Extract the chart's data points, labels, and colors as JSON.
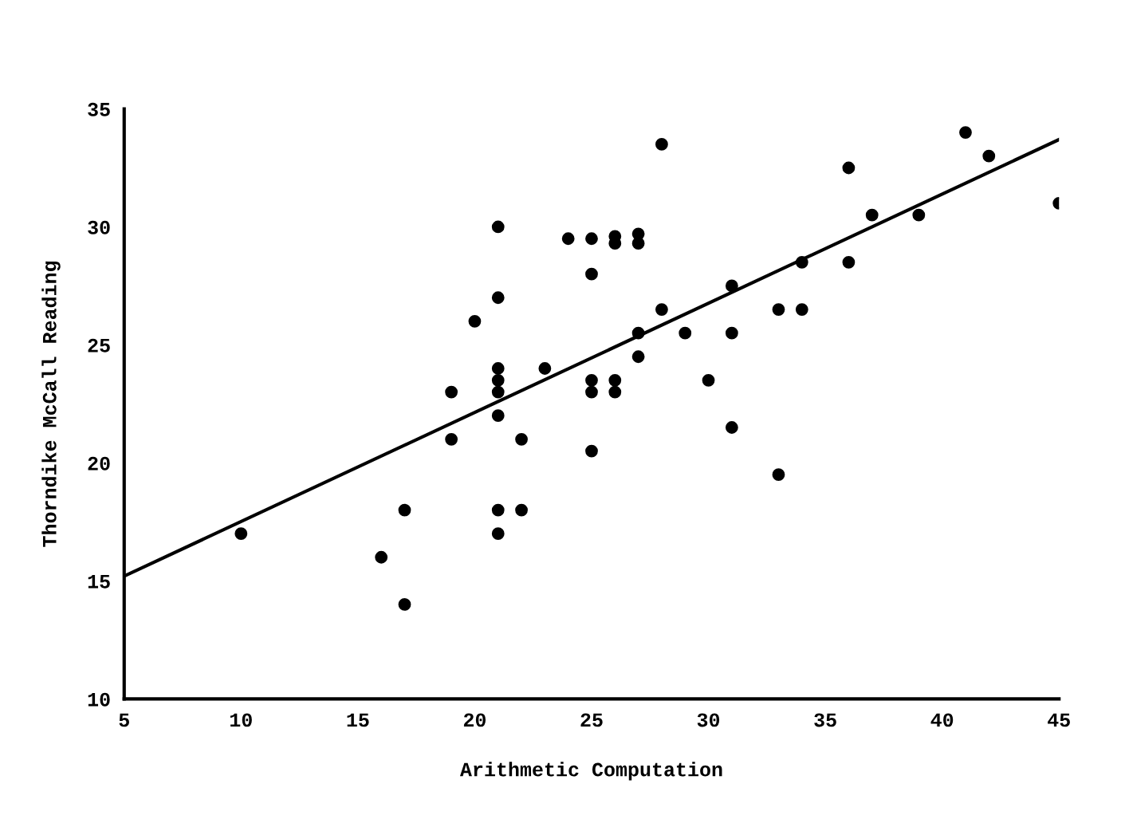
{
  "chart_data": {
    "type": "scatter",
    "xlabel": "Arithmetic Computation",
    "ylabel": "Thorndike McCall Reading",
    "xlim": [
      5,
      45
    ],
    "ylim": [
      10,
      35
    ],
    "xticks": [
      5,
      10,
      15,
      20,
      25,
      30,
      35,
      40,
      45
    ],
    "yticks": [
      10,
      15,
      20,
      25,
      30,
      35
    ],
    "grid": false,
    "legend": false,
    "marker": "circle",
    "series": [
      {
        "color": "#000000",
        "x": [
          10,
          16,
          17,
          17,
          19,
          19,
          20,
          21,
          21,
          21,
          21,
          21,
          21,
          21,
          21,
          22,
          22,
          23,
          24,
          25,
          25,
          25,
          25,
          25,
          26,
          26,
          26,
          26,
          27,
          27,
          27,
          27,
          28,
          28,
          29,
          30,
          31,
          31,
          31,
          33,
          33,
          34,
          34,
          36,
          36,
          37,
          39,
          41,
          42,
          45
        ],
        "values": [
          17,
          16,
          18,
          14,
          23,
          21,
          26,
          30,
          27,
          24,
          23.5,
          23,
          22,
          18,
          17,
          21,
          18,
          24,
          29.5,
          29.5,
          28,
          23.5,
          23,
          20.5,
          29.6,
          29.3,
          23.5,
          23,
          29.7,
          29.3,
          25.5,
          24.5,
          33.5,
          26.5,
          25.5,
          23.5,
          27.5,
          25.5,
          21.5,
          26.5,
          19.5,
          28.5,
          26.5,
          32.5,
          28.5,
          30.5,
          30.5,
          34,
          33,
          31
        ]
      },
      {
        "type": "line",
        "color": "#000000",
        "x": [
          5,
          45
        ],
        "values": [
          15.2,
          33.7
        ],
        "line_style": "solid",
        "marker": "none"
      }
    ]
  }
}
